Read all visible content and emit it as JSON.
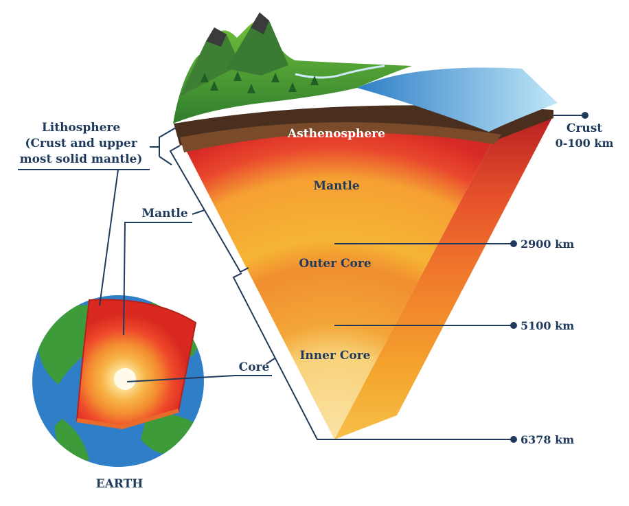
{
  "labels": {
    "lithosphere_title": "Lithosphere",
    "lithosphere_line2": "(Crust and upper",
    "lithosphere_line3": "most solid mantle)",
    "mantle_side": "Mantle",
    "core_side": "Core",
    "earth": "EARTH",
    "asthenosphere": "Asthenosphere",
    "mantle_layer": "Mantle",
    "outer_core": "Outer Core",
    "inner_core": "Inner Core",
    "crust": "Crust",
    "crust_depth": "0-100 km",
    "depth_2900": "2900 km",
    "depth_5100": "5100 km",
    "depth_6378": "6378 km"
  },
  "colors": {
    "text": "#1f3a5c",
    "asthenosphere": "#e8322a",
    "mantle": "#f4a22c",
    "outer_core": "#f08a2c",
    "inner_core": "#f9d98a",
    "ocean": "#2e7fc8",
    "land": "#3d9b3a"
  }
}
